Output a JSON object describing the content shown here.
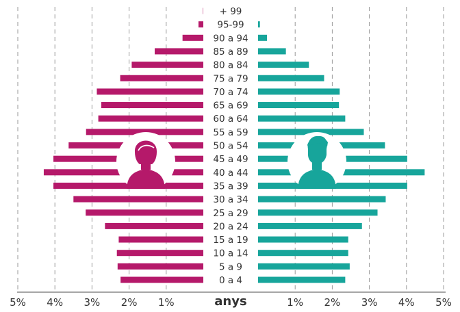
{
  "chart_data": {
    "type": "bar",
    "orientation": "horizontal",
    "subtype": "population-pyramid",
    "title": "",
    "xlabel": "anys",
    "ylabel": "",
    "x_unit": "%",
    "xlim": [
      0,
      5
    ],
    "grid": true,
    "categories": [
      "0 a 4",
      "5 a 9",
      "10 a 14",
      "15 a 19",
      "20 a 24",
      "25 a 29",
      "30 a 34",
      "35 a 39",
      "40 a 44",
      "45 a 49",
      "50 a 54",
      "55 a 59",
      "60 a 64",
      "65 a 69",
      "70 a 74",
      "75 a 79",
      "80 a 84",
      "85 a 89",
      "90 a 94",
      "95-99",
      "+ 99"
    ],
    "x_ticks_left": [
      "5%",
      "4%",
      "3%",
      "2%",
      "1%"
    ],
    "x_ticks_right": [
      "1%",
      "2%",
      "3%",
      "4%",
      "5%"
    ],
    "series": [
      {
        "side": "left",
        "icon": "female-icon",
        "color": "#b5196a",
        "values": [
          2.23,
          2.31,
          2.33,
          2.28,
          2.65,
          3.17,
          3.5,
          4.04,
          4.3,
          4.04,
          3.63,
          3.16,
          2.83,
          2.75,
          2.87,
          2.24,
          1.93,
          1.31,
          0.56,
          0.13,
          0.01
        ]
      },
      {
        "side": "right",
        "icon": "male-icon",
        "color": "#17a59b",
        "values": [
          2.35,
          2.47,
          2.43,
          2.43,
          2.8,
          3.22,
          3.44,
          4.02,
          4.49,
          4.02,
          3.42,
          2.85,
          2.35,
          2.18,
          2.2,
          1.78,
          1.37,
          0.75,
          0.24,
          0.05,
          0.0
        ]
      }
    ]
  }
}
